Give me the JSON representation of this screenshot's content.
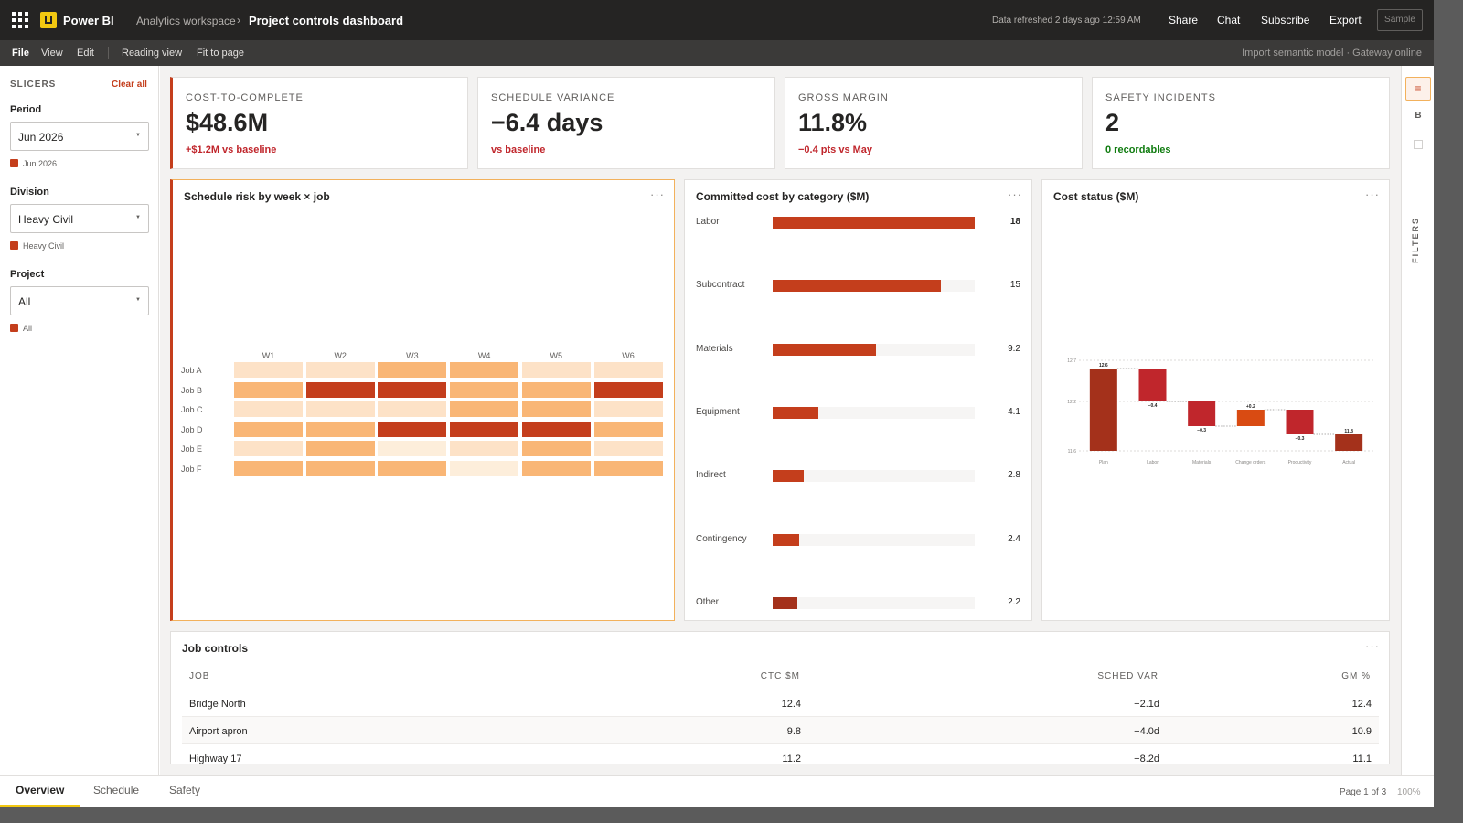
{
  "app": {
    "brand": "Power BI",
    "breadcrumb_workspace": "Analytics workspace",
    "breadcrumb_sep": "›",
    "report_title": "Project controls dashboard",
    "refresh_text": "Data refreshed 2 days ago 12:59 AM",
    "actions": [
      "Share",
      "Chat",
      "Subscribe",
      "Export"
    ],
    "sample_label": "Sample",
    "logo_color": "#f2c811"
  },
  "menu": {
    "items": [
      "File",
      "View",
      "Edit",
      "Reading view",
      "Fit to page"
    ],
    "status": "Import semantic model · Gateway online"
  },
  "slicers": {
    "heading": "SLICERS",
    "clear_all": "Clear all",
    "groups": [
      {
        "label": "Period",
        "value": "Jun 2026",
        "chip": "Jun 2026"
      },
      {
        "label": "Division",
        "value": "Heavy Civil",
        "chip": "Heavy Civil"
      },
      {
        "label": "Project",
        "value": "All",
        "chip": "All"
      }
    ]
  },
  "kpis": [
    {
      "label": "COST-TO-COMPLETE",
      "value": "$48.6M",
      "delta": "+$1.2M vs baseline",
      "delta_color": "#c0262c"
    },
    {
      "label": "SCHEDULE VARIANCE",
      "value": "−6.4 days",
      "delta": "vs baseline",
      "delta_color": "#c0262c"
    },
    {
      "label": "GROSS MARGIN",
      "value": "11.8%",
      "delta": "−0.4 pts vs May",
      "delta_color": "#c0262c"
    },
    {
      "label": "SAFETY INCIDENTS",
      "value": "2",
      "delta": "0 recordables",
      "delta_color": "#107c10"
    }
  ],
  "visuals": {
    "heatmap_title": "Schedule risk by week × job",
    "bars_title": "Committed cost by category ($M)",
    "waterfall_title": "Cost status ($M)",
    "more_glyph": "···"
  },
  "chart_data": [
    {
      "type": "heatmap",
      "title": "Schedule risk by week × job",
      "x": [
        "W1",
        "W2",
        "W3",
        "W4",
        "W5",
        "W6"
      ],
      "y": [
        "Job A",
        "Job B",
        "Job C",
        "Job D",
        "Job E",
        "Job F"
      ],
      "levels": [
        [
          1,
          1,
          2,
          2,
          1,
          1
        ],
        [
          2,
          3,
          3,
          2,
          2,
          3
        ],
        [
          1,
          1,
          1,
          2,
          2,
          1
        ],
        [
          2,
          2,
          3,
          3,
          3,
          2
        ],
        [
          1,
          2,
          0,
          1,
          2,
          1
        ],
        [
          2,
          2,
          2,
          0,
          2,
          2
        ]
      ],
      "palette": [
        "#fdeedb",
        "#fde2c7",
        "#f9b676",
        "#c43e1c"
      ]
    },
    {
      "type": "bar",
      "title": "Committed cost by category ($M)",
      "categories": [
        "Labor",
        "Subcontract",
        "Materials",
        "Equipment",
        "Indirect",
        "Contingency",
        "Other"
      ],
      "values": [
        18,
        15,
        9.2,
        4.1,
        2.8,
        2.4,
        2.2
      ],
      "value_labels": [
        "18",
        "15",
        "9.2",
        "4.1",
        "2.8",
        "2.4",
        "2.2"
      ],
      "xlim": [
        0,
        18
      ],
      "orientation": "horizontal",
      "color": "#c43e1c"
    },
    {
      "type": "bar",
      "subtype": "waterfall",
      "title": "Cost status ($M)",
      "categories": [
        "Plan",
        "Labor",
        "Materials",
        "Change orders",
        "Productivity",
        "Actual"
      ],
      "values": [
        12.6,
        -0.4,
        -0.3,
        0.2,
        -0.3,
        11.8
      ],
      "value_labels": [
        "12.6",
        "−0.4",
        "−0.3",
        "+0.2",
        "−0.3",
        "11.8"
      ],
      "kinds": [
        "total",
        "delta",
        "delta",
        "delta",
        "delta",
        "total"
      ],
      "y_ticks": [
        11.6,
        12.2,
        12.7
      ],
      "ylim": [
        11.6,
        12.7
      ],
      "grid": true,
      "colors": {
        "total": "#a4311b",
        "decrease": "#c0262c",
        "increase": "#d94b12"
      }
    }
  ],
  "table": {
    "title": "Job controls",
    "columns": [
      "JOB",
      "CTC $M",
      "SCHED VAR",
      "GM %"
    ],
    "rows": [
      [
        "Bridge North",
        "12.4",
        "−2.1d",
        "12.4"
      ],
      [
        "Airport apron",
        "9.8",
        "−4.0d",
        "10.9"
      ],
      [
        "Highway 17",
        "11.2",
        "−8.2d",
        "11.1"
      ]
    ]
  },
  "rail": {
    "icon1": "≡",
    "icon2": "B",
    "filters_label": "FILTERS"
  },
  "pages": {
    "tabs": [
      "Overview",
      "Schedule",
      "Safety"
    ],
    "page_info": "Page 1 of 3",
    "zoom": "100%"
  }
}
